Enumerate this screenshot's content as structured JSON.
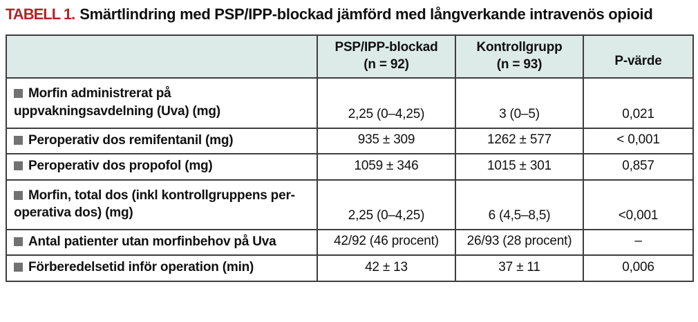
{
  "caption": {
    "tag": "TABELL 1.",
    "title": "Smärtlindring med PSP/IPP-blockad jämförd med långverkande intravenös opioid"
  },
  "colors": {
    "accent_red": "#b22428",
    "header_bg": "#dcebe8",
    "bullet_gray": "#717171"
  },
  "table": {
    "headers": {
      "rowlabel": "",
      "psp": {
        "label": "PSP/IPP-blockad",
        "sub": "(n = 92)"
      },
      "kontroll": {
        "label": "Kontrollgrupp",
        "sub": "(n = 93)"
      },
      "p": "P-värde"
    },
    "rows": [
      {
        "label": "Morfin administrerat på uppvakningsavdelning (Uva) (mg)",
        "psp": "2,25 (0–4,25)",
        "kontroll": "3 (0–5)",
        "p": "0,021"
      },
      {
        "label": "Peroperativ dos remifentanil (mg)",
        "psp": "935 ± 309",
        "kontroll": "1262 ± 577",
        "p": "< 0,001"
      },
      {
        "label": "Peroperativ dos propofol (mg)",
        "psp": "1059 ± 346",
        "kontroll": "1015 ± 301",
        "p": "0,857"
      },
      {
        "label": "Morfin, total dos (inkl kontrollgruppens per­operativa dos) (mg)",
        "psp": "2,25 (0–4,25)",
        "kontroll": "6 (4,5–8,5)",
        "p": "<0,001"
      },
      {
        "label": "Antal patienter utan morfinbehov på Uva",
        "psp": "42/92 (46 procent)",
        "kontroll": "26/93 (28 procent)",
        "p": "–"
      },
      {
        "label": "Förberedelsetid inför operation (min)",
        "psp": "42 ± 13",
        "kontroll": "37 ± 11",
        "p": "0,006"
      }
    ]
  }
}
